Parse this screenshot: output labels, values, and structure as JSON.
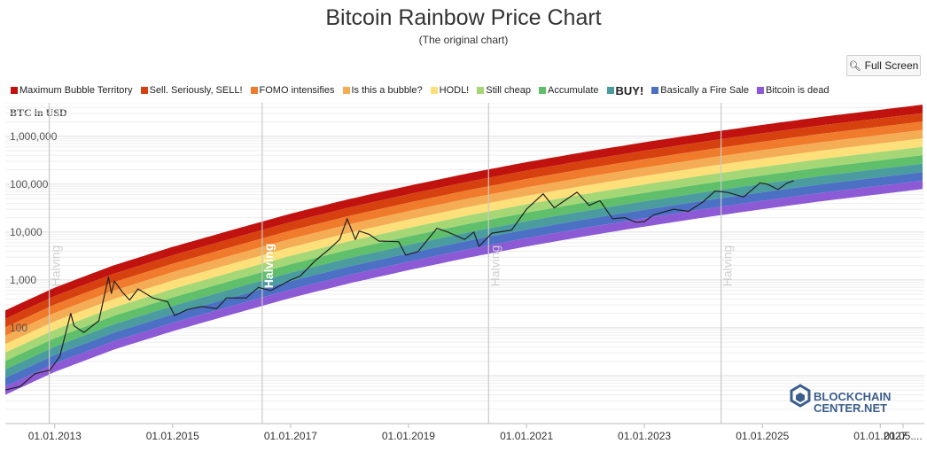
{
  "header": {
    "title": "Bitcoin Rainbow Price Chart",
    "subtitle": "(The original chart)"
  },
  "toolbar": {
    "fullscreen_label": "Full Screen",
    "fullscreen_icon": "zoom-in-icon"
  },
  "watermark": {
    "line1": "BLOCKCHAIN",
    "line2": "CENTER.NET"
  },
  "chart_data": {
    "type": "area",
    "title": "Bitcoin Rainbow Price Chart",
    "subtitle": "(The original chart)",
    "ylabel": "BTC in USD",
    "yscale": "log",
    "ylim": [
      1,
      5000000
    ],
    "yticks": [
      {
        "value": 100,
        "label": "100"
      },
      {
        "value": 1000,
        "label": "1,000"
      },
      {
        "value": 10000,
        "label": "10,000"
      },
      {
        "value": 100000,
        "label": "100,000"
      },
      {
        "value": 1000000,
        "label": "1,000,000"
      }
    ],
    "xlim": [
      "2012-03-01",
      "2027-10-01"
    ],
    "xticks": [
      "01.01.2013",
      "01.01.2015",
      "01.01.2017",
      "01.01.2019",
      "01.01.2021",
      "01.01.2023",
      "01.01.2025",
      "01.01.2027",
      "01.05...."
    ],
    "xtick_dates": [
      "2013-01-01",
      "2015-01-01",
      "2017-01-01",
      "2019-01-01",
      "2021-01-01",
      "2023-01-01",
      "2025-01-01",
      "2027-01-01",
      "2027-05-01"
    ],
    "grid": true,
    "legend_position": "top",
    "bands": [
      {
        "name": "Maximum Bubble Territory",
        "color": "#c0120f"
      },
      {
        "name": "Sell. Seriously, SELL!",
        "color": "#d6410f"
      },
      {
        "name": "FOMO intensifies",
        "color": "#f07b2c"
      },
      {
        "name": "Is this a bubble?",
        "color": "#f5ad55"
      },
      {
        "name": "HODL!",
        "color": "#fde07a"
      },
      {
        "name": "Still cheap",
        "color": "#a6d777"
      },
      {
        "name": "Accumulate",
        "color": "#5fbf6a"
      },
      {
        "name": "BUY!",
        "color": "#4a9c9f"
      },
      {
        "name": "Basically a Fire Sale",
        "color": "#4b70c4"
      },
      {
        "name": "Bitcoin is dead",
        "color": "#8d5ad6"
      }
    ],
    "band_bottom_anchors": [
      {
        "date": "2012-03-01",
        "value": 4
      },
      {
        "date": "2013-01-01",
        "value": 12
      },
      {
        "date": "2014-01-01",
        "value": 35
      },
      {
        "date": "2015-01-01",
        "value": 85
      },
      {
        "date": "2016-01-01",
        "value": 190
      },
      {
        "date": "2017-01-01",
        "value": 420
      },
      {
        "date": "2018-01-01",
        "value": 850
      },
      {
        "date": "2019-01-01",
        "value": 1600
      },
      {
        "date": "2020-01-01",
        "value": 2900
      },
      {
        "date": "2021-01-01",
        "value": 5000
      },
      {
        "date": "2022-01-01",
        "value": 8200
      },
      {
        "date": "2023-01-01",
        "value": 13000
      },
      {
        "date": "2024-01-01",
        "value": 20000
      },
      {
        "date": "2025-01-01",
        "value": 30000
      },
      {
        "date": "2026-01-01",
        "value": 44000
      },
      {
        "date": "2027-01-01",
        "value": 62000
      },
      {
        "date": "2027-10-01",
        "value": 80000
      }
    ],
    "band_ratio": 1.5,
    "halvings": [
      {
        "date": "2012-11-28",
        "label": "Halving"
      },
      {
        "date": "2016-07-09",
        "label": "Halving"
      },
      {
        "date": "2020-05-11",
        "label": "Halving"
      },
      {
        "date": "2024-04-20",
        "label": "Halving"
      },
      {
        "date": "2028-03-15",
        "label": "Halving"
      }
    ],
    "series": [
      {
        "name": "BTC price",
        "color": "#222222",
        "points": [
          [
            "2012-03-01",
            5
          ],
          [
            "2012-06-01",
            6
          ],
          [
            "2012-09-01",
            11
          ],
          [
            "2012-12-01",
            13
          ],
          [
            "2013-02-01",
            25
          ],
          [
            "2013-04-10",
            200
          ],
          [
            "2013-05-01",
            110
          ],
          [
            "2013-07-01",
            80
          ],
          [
            "2013-10-01",
            140
          ],
          [
            "2013-11-30",
            1150
          ],
          [
            "2013-12-18",
            520
          ],
          [
            "2014-01-05",
            950
          ],
          [
            "2014-02-25",
            550
          ],
          [
            "2014-04-10",
            380
          ],
          [
            "2014-06-01",
            650
          ],
          [
            "2014-09-01",
            420
          ],
          [
            "2014-12-01",
            350
          ],
          [
            "2015-01-14",
            180
          ],
          [
            "2015-04-01",
            240
          ],
          [
            "2015-07-01",
            280
          ],
          [
            "2015-10-01",
            250
          ],
          [
            "2015-12-01",
            420
          ],
          [
            "2016-04-01",
            420
          ],
          [
            "2016-06-15",
            700
          ],
          [
            "2016-09-01",
            600
          ],
          [
            "2017-01-01",
            1000
          ],
          [
            "2017-03-01",
            1200
          ],
          [
            "2017-06-01",
            2500
          ],
          [
            "2017-09-01",
            4500
          ],
          [
            "2017-11-01",
            7000
          ],
          [
            "2017-12-17",
            19000
          ],
          [
            "2018-02-06",
            7000
          ],
          [
            "2018-03-01",
            10500
          ],
          [
            "2018-05-01",
            9000
          ],
          [
            "2018-07-01",
            6500
          ],
          [
            "2018-11-01",
            6300
          ],
          [
            "2018-12-15",
            3300
          ],
          [
            "2019-03-01",
            3900
          ],
          [
            "2019-06-26",
            12000
          ],
          [
            "2019-09-01",
            10000
          ],
          [
            "2019-12-15",
            7000
          ],
          [
            "2020-02-10",
            10000
          ],
          [
            "2020-03-13",
            5000
          ],
          [
            "2020-06-01",
            9500
          ],
          [
            "2020-10-01",
            11000
          ],
          [
            "2021-01-01",
            30000
          ],
          [
            "2021-04-14",
            63000
          ],
          [
            "2021-06-22",
            32000
          ],
          [
            "2021-09-01",
            47000
          ],
          [
            "2021-11-10",
            68000
          ],
          [
            "2022-01-24",
            36000
          ],
          [
            "2022-04-01",
            45000
          ],
          [
            "2022-06-18",
            19000
          ],
          [
            "2022-09-01",
            20000
          ],
          [
            "2022-11-10",
            16000
          ],
          [
            "2023-01-01",
            16500
          ],
          [
            "2023-03-01",
            23000
          ],
          [
            "2023-07-01",
            30000
          ],
          [
            "2023-10-01",
            27000
          ],
          [
            "2024-01-01",
            43000
          ],
          [
            "2024-03-14",
            72000
          ],
          [
            "2024-06-01",
            67000
          ],
          [
            "2024-09-06",
            54000
          ],
          [
            "2024-12-17",
            106000
          ],
          [
            "2025-02-01",
            100000
          ],
          [
            "2025-04-08",
            77000
          ],
          [
            "2025-06-01",
            105000
          ],
          [
            "2025-07-15",
            118000
          ]
        ]
      }
    ]
  }
}
